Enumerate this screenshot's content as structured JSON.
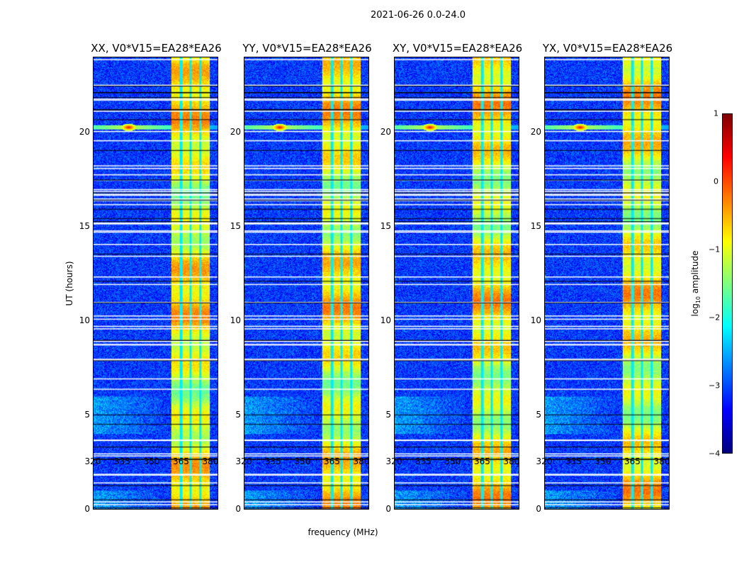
{
  "chart_data": {
    "type": "heatmap",
    "title": "2021-06-26 0.0-24.0",
    "xlabel": "frequency (MHz)",
    "ylabel": "UT (hours)",
    "xlim": [
      320,
      384
    ],
    "ylim": [
      0,
      24
    ],
    "xticks": [
      320,
      335,
      350,
      365,
      380
    ],
    "yticks": [
      0,
      5,
      10,
      15,
      20
    ],
    "panels": [
      {
        "title": "XX, V0*V15=EA28*EA26"
      },
      {
        "title": "YY, V0*V15=EA28*EA26"
      },
      {
        "title": "XY, V0*V15=EA28*EA26"
      },
      {
        "title": "YX, V0*V15=EA28*EA26"
      }
    ],
    "rfi_band_mhz": [
      360,
      380
    ],
    "rfi_spot": {
      "freq_mhz": 338,
      "ut_hours": 20.3
    },
    "colorbar": {
      "label_main": "log",
      "label_sub": "10",
      "label_rest": " amplitude",
      "range": [
        -4,
        1
      ],
      "ticks": [
        1,
        0,
        -1,
        -2,
        -3,
        -4
      ],
      "tick_labels": [
        "1",
        "0",
        "−1",
        "−2",
        "−3",
        "−4"
      ],
      "colormap": "jet"
    }
  }
}
